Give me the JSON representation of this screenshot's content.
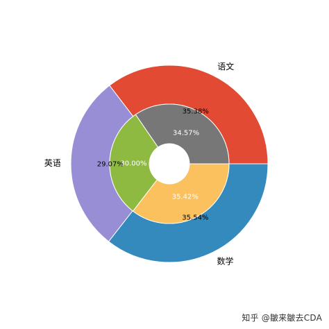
{
  "chart_data": {
    "type": "pie",
    "subtype": "nested-donut",
    "rings": [
      {
        "ring": "outer",
        "categories": [
          "语文",
          "英语",
          "数学"
        ],
        "values": [
          35.38,
          29.07,
          35.54
        ],
        "percent_labels": [
          "35.38%",
          "29.07%",
          "35.54%"
        ],
        "colors": [
          "#E24A33",
          "#988ED5",
          "#348ABD"
        ]
      },
      {
        "ring": "inner",
        "categories": [
          "语文",
          "英语",
          "数学"
        ],
        "values": [
          34.57,
          30.0,
          35.42
        ],
        "percent_labels": [
          "34.57%",
          "30.00%",
          "35.42%"
        ],
        "colors": [
          "#777777",
          "#8EBA42",
          "#FBC15E"
        ]
      }
    ],
    "start_angle_deg": 0,
    "direction": "counterclockwise",
    "label_text_colors": {
      "outer": "#000000",
      "inner": "#ffffff"
    },
    "edge_color": "#ffffff"
  },
  "watermark": "知乎 @皺来皺去CDA"
}
